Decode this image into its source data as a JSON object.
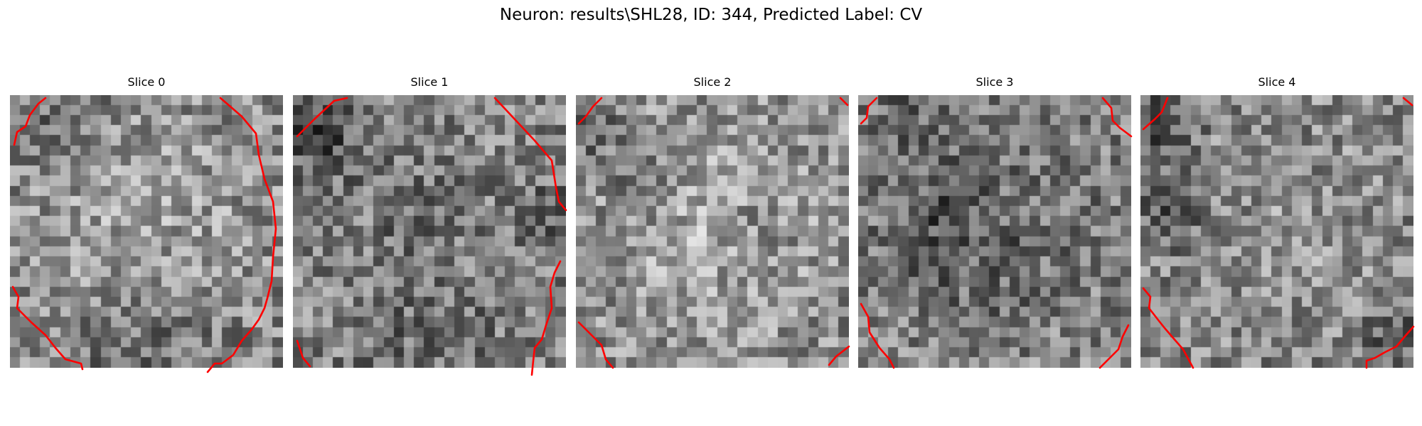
{
  "figure": {
    "title": "Neuron: results\\SHL28, ID: 344, Predicted Label: CV",
    "colormap": "gray",
    "contour_color": "#ff0000"
  },
  "slices": [
    {
      "label": "Slice 0"
    },
    {
      "label": "Slice 1"
    },
    {
      "label": "Slice 2"
    },
    {
      "label": "Slice 3"
    },
    {
      "label": "Slice 4"
    }
  ]
}
